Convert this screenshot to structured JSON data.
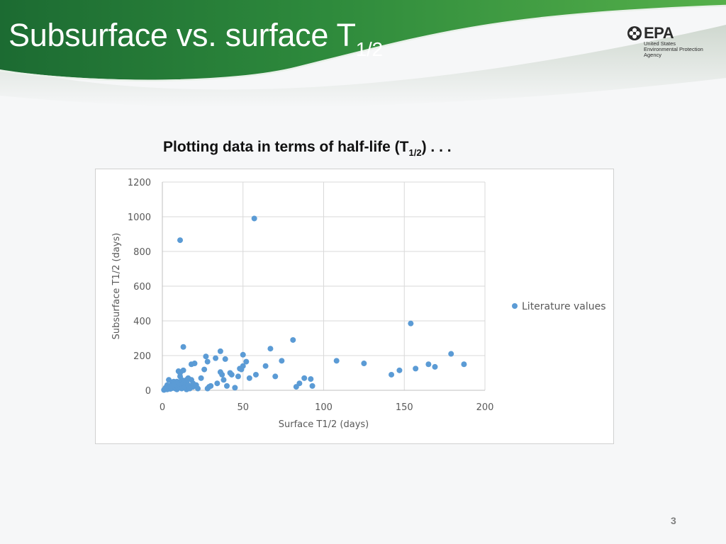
{
  "slide": {
    "title_main": "Subsurface vs. surface T",
    "title_sub": "1/2",
    "subtitle_main": "Plotting data in terms of half-life (T",
    "subtitle_sub": "1/2",
    "subtitle_end": ") . . .",
    "page_number": "3"
  },
  "logo": {
    "name": "EPA",
    "line1": "United States",
    "line2": "Environmental Protection",
    "line3": "Agency",
    "icon": "epa-flower-icon"
  },
  "colors": {
    "header_green": "#1c6b32",
    "header_light": "#4aa64a",
    "marker": "#5b9bd5",
    "background": "#f6f7f8"
  },
  "chart_data": {
    "type": "scatter",
    "title": "",
    "xlabel": "Surface T1/2 (days)",
    "ylabel": "Subsurface T1/2 (days)",
    "xlim": [
      0,
      200
    ],
    "ylim": [
      0,
      1200
    ],
    "xticks": [
      0,
      50,
      100,
      150,
      200
    ],
    "yticks": [
      0,
      200,
      400,
      600,
      800,
      1000,
      1200
    ],
    "grid": true,
    "legend_position": "right",
    "series": [
      {
        "name": "Literature values",
        "x": [
          1,
          2,
          3,
          3,
          4,
          4,
          5,
          5,
          6,
          6,
          7,
          7,
          8,
          8,
          9,
          9,
          10,
          10,
          10,
          11,
          11,
          11,
          12,
          12,
          12,
          13,
          13,
          13,
          14,
          14,
          15,
          15,
          16,
          16,
          17,
          18,
          18,
          19,
          19,
          20,
          21,
          22,
          24,
          26,
          27,
          28,
          28,
          29,
          30,
          33,
          34,
          36,
          36,
          37,
          38,
          39,
          40,
          42,
          43,
          45,
          47,
          48,
          49,
          50,
          50,
          52,
          54,
          57,
          58,
          64,
          67,
          70,
          74,
          81,
          83,
          85,
          88,
          92,
          93,
          108,
          125,
          142,
          147,
          154,
          157,
          165,
          169,
          179,
          187,
          11,
          3,
          7,
          5,
          15,
          9
        ],
        "y": [
          2,
          15,
          30,
          5,
          60,
          20,
          25,
          8,
          40,
          12,
          18,
          50,
          22,
          10,
          30,
          5,
          110,
          45,
          15,
          80,
          20,
          100,
          35,
          60,
          10,
          115,
          40,
          250,
          20,
          55,
          45,
          5,
          30,
          70,
          10,
          150,
          60,
          20,
          40,
          155,
          30,
          10,
          70,
          120,
          195,
          10,
          165,
          20,
          25,
          185,
          40,
          105,
          225,
          90,
          60,
          180,
          25,
          100,
          90,
          15,
          80,
          125,
          120,
          205,
          140,
          165,
          70,
          990,
          90,
          140,
          240,
          80,
          170,
          290,
          20,
          40,
          70,
          65,
          25,
          170,
          155,
          90,
          115,
          385,
          125,
          150,
          135,
          210,
          150,
          865,
          10,
          35,
          20,
          60,
          50
        ]
      }
    ]
  }
}
